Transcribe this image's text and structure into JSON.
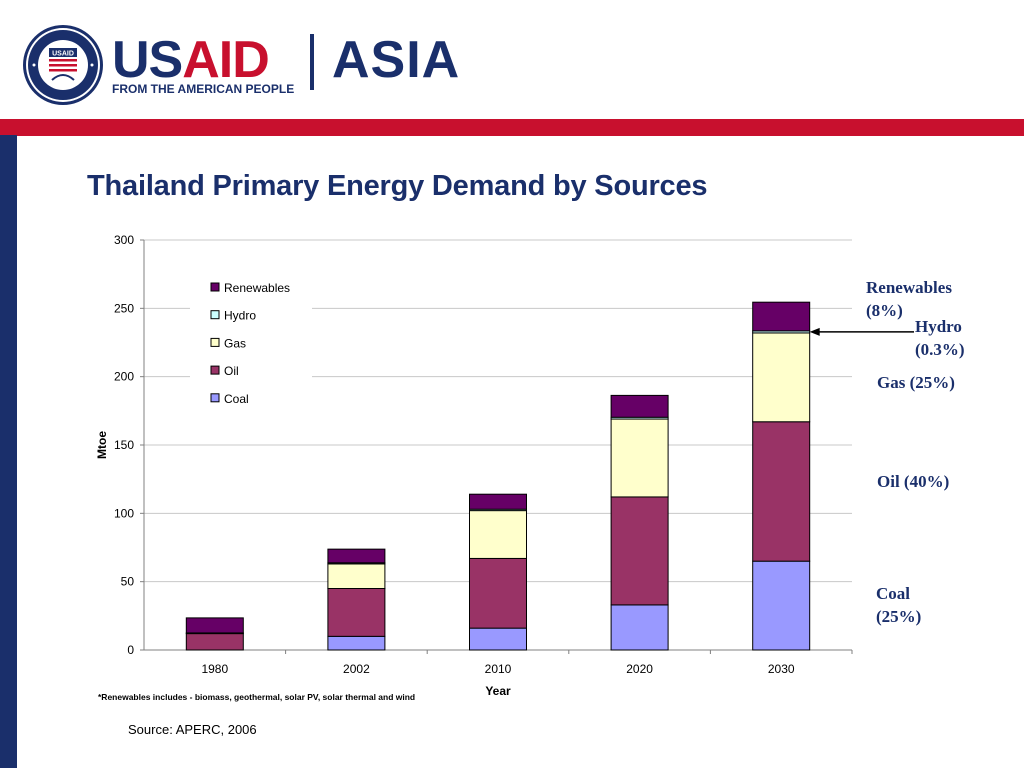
{
  "header": {
    "brand_us": "US",
    "brand_aid": "AID",
    "brand_region": "ASIA",
    "tagline": "FROM THE AMERICAN PEOPLE",
    "seal_top": "USAID",
    "seal_ring_text": "UNITED STATES AGENCY INTERNATIONAL DEVELOPMENT"
  },
  "colors": {
    "navy": "#1a2f6b",
    "red": "#c8102e",
    "coal": "#9999ff",
    "oil": "#993366",
    "gas": "#ffffcc",
    "hydro": "#ccffff",
    "renewables": "#660066"
  },
  "chart_data": {
    "type": "bar",
    "stacked": true,
    "title": "Thailand Primary Energy Demand by Sources",
    "xlabel": "Year",
    "ylabel": "Mtoe",
    "ylim": [
      0,
      300
    ],
    "yticks": [
      0,
      50,
      100,
      150,
      200,
      250,
      300
    ],
    "grid": true,
    "legend_position": "top-left",
    "categories": [
      "1980",
      "2002",
      "2010",
      "2020",
      "2030"
    ],
    "series": [
      {
        "name": "Coal",
        "color": "#9999ff",
        "values": [
          0,
          10,
          16,
          33,
          65
        ]
      },
      {
        "name": "Oil",
        "color": "#993366",
        "values": [
          12,
          35,
          51,
          79,
          102
        ]
      },
      {
        "name": "Gas",
        "color": "#ffffcc",
        "values": [
          0,
          18,
          35,
          57,
          65
        ]
      },
      {
        "name": "Hydro",
        "color": "#ccffff",
        "values": [
          0.5,
          0.8,
          1,
          1.3,
          1.5
        ]
      },
      {
        "name": "Renewables",
        "color": "#660066",
        "values": [
          11,
          10,
          11,
          16,
          21
        ]
      }
    ],
    "legend_order": [
      "Renewables",
      "Hydro",
      "Gas",
      "Oil",
      "Coal"
    ]
  },
  "annotations": {
    "renewables": "Renewables (8%)",
    "renewables_l1": "Renewables",
    "renewables_l2": "(8%)",
    "hydro_l1": "Hydro",
    "hydro_l2": "(0.3%)",
    "gas": "Gas (25%)",
    "oil": "Oil (40%)",
    "coal_l1": "Coal",
    "coal_l2": "(25%)"
  },
  "footnote": "*Renewables includes - biomass, geothermal, solar PV, solar thermal and wind",
  "source": "Source: APERC,  2006"
}
